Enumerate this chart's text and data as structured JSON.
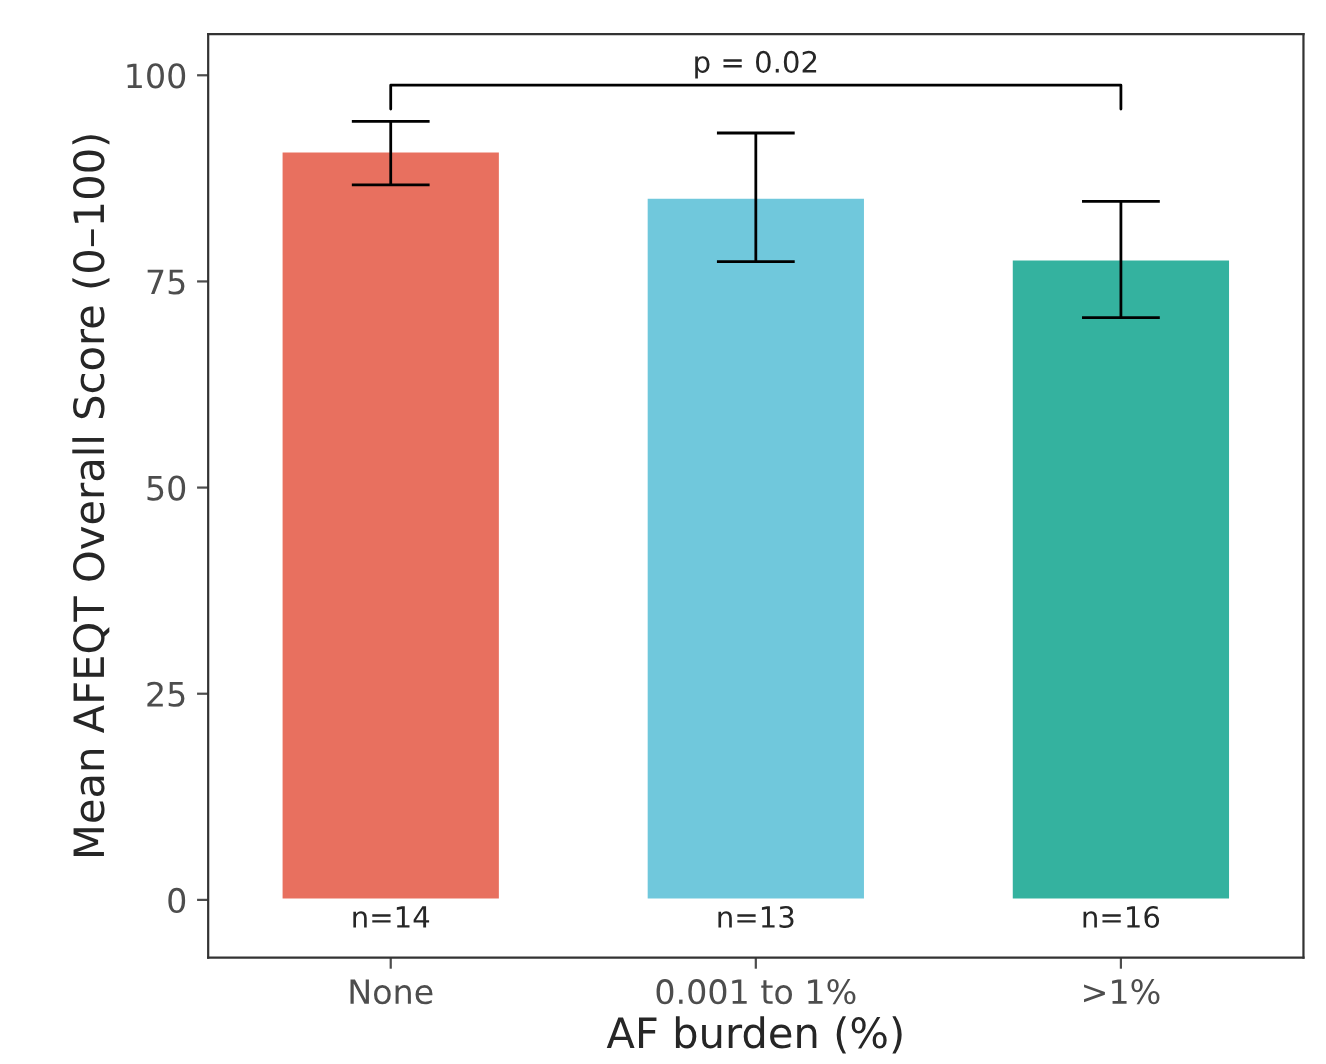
{
  "chart_data": {
    "type": "bar",
    "xlabel": "AF burden (%)",
    "ylabel": "Mean AFEQT Overall Score (0–100)",
    "categories": [
      "None",
      "0.001 to 1%",
      ">1%"
    ],
    "values": [
      90.8,
      85.2,
      77.7
    ],
    "colors": [
      "#e8705f",
      "#70c8dc",
      "#34b29f"
    ],
    "errors": [
      [
        86.7,
        94.4
      ],
      [
        77.4,
        93.0
      ],
      [
        70.6,
        84.7
      ]
    ],
    "ylim": [
      -7,
      105
    ],
    "yticks": [
      0,
      25,
      50,
      75,
      100
    ],
    "grid": false,
    "legend": false,
    "annotations": [
      {
        "text": "n=14",
        "x": "None",
        "y": 0
      },
      {
        "text": "n=13",
        "x": "0.001 to 1%",
        "y": 0
      },
      {
        "text": "n=16",
        "x": ">1%",
        "y": 0
      },
      "p = 0.02"
    ]
  }
}
